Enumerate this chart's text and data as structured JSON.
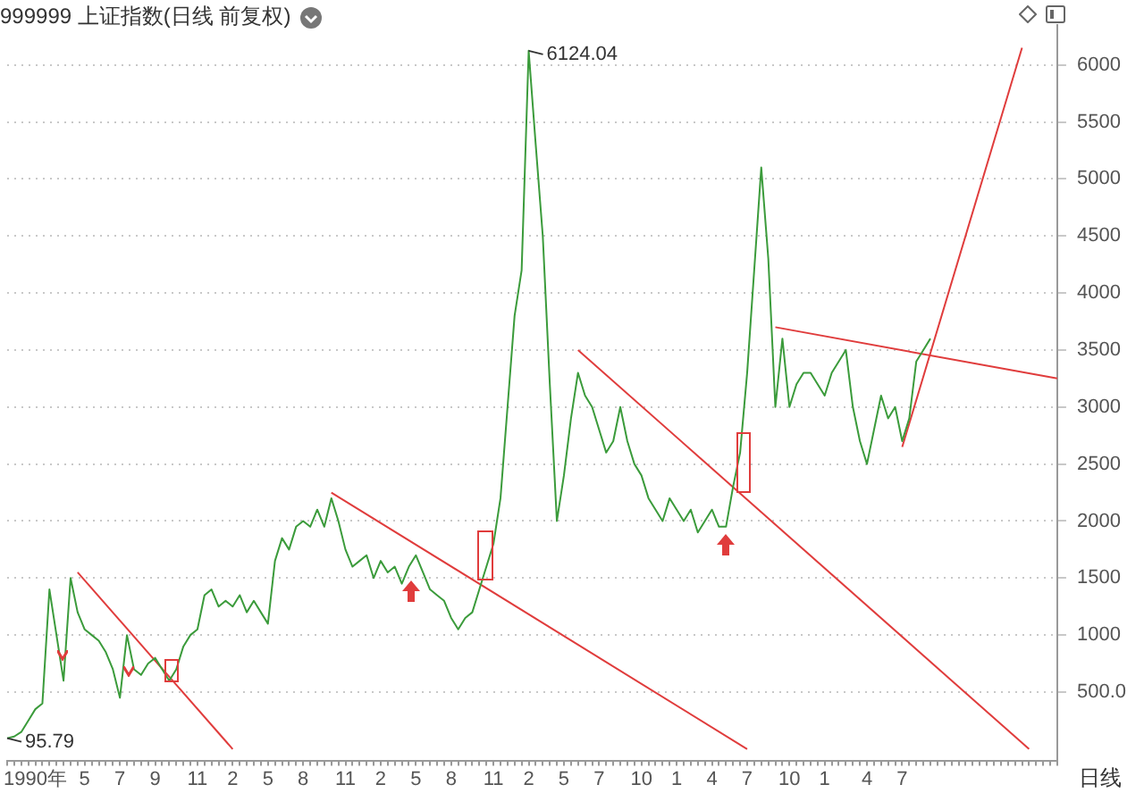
{
  "chart_data": {
    "type": "line",
    "title": "999999 上证指数(日线 前复权)",
    "categories": [
      null,
      null,
      null,
      null,
      "1990年",
      null,
      null,
      null,
      null,
      null,
      null,
      "5",
      null,
      null,
      null,
      null,
      "7",
      null,
      null,
      null,
      null,
      "9",
      null,
      null,
      null,
      null,
      null,
      "11",
      null,
      null,
      null,
      null,
      "2",
      null,
      null,
      null,
      null,
      "5",
      null,
      null,
      null,
      null,
      "8",
      null,
      null,
      null,
      null,
      null,
      "11",
      null,
      null,
      null,
      null,
      "2",
      null,
      null,
      null,
      null,
      "5",
      null,
      null,
      null,
      null,
      "8",
      null,
      null,
      null,
      null,
      null,
      "11",
      null,
      null,
      null,
      null,
      "2",
      null,
      null,
      null,
      null,
      "5",
      null,
      null,
      null,
      null,
      "7",
      null,
      null,
      null,
      null,
      null,
      "10",
      null,
      null,
      null,
      null,
      "1",
      null,
      null,
      null,
      null,
      "4",
      null,
      null,
      null,
      null,
      "7",
      null,
      null,
      null,
      null,
      null,
      "10",
      null,
      null,
      null,
      null,
      "1",
      null,
      null,
      null,
      null,
      null,
      "4",
      null,
      null,
      null,
      null,
      "7",
      null,
      null,
      null,
      null,
      null,
      null,
      null,
      null,
      null,
      null,
      null,
      null,
      null,
      null,
      null,
      null,
      null,
      null,
      null,
      null,
      null,
      null
    ],
    "series": [
      {
        "color": "#3b9b3b",
        "values": [
          95.79,
          110,
          150,
          250,
          350,
          400,
          1400,
          1000,
          600,
          1500,
          1200,
          1050,
          1000,
          950,
          850,
          700,
          450,
          1000,
          700,
          650,
          750,
          800,
          700,
          600,
          700,
          900,
          1000,
          1050,
          1350,
          1400,
          1250,
          1300,
          1250,
          1350,
          1200,
          1300,
          1200,
          1100,
          1650,
          1850,
          1750,
          1950,
          2000,
          1950,
          2100,
          1950,
          2200,
          2000,
          1750,
          1600,
          1650,
          1700,
          1500,
          1650,
          1550,
          1600,
          1450,
          1600,
          1700,
          1550,
          1400,
          1350,
          1300,
          1150,
          1050,
          1150,
          1200,
          1400,
          1600,
          1800,
          2200,
          3000,
          3800,
          4200,
          6124.04,
          5300,
          4500,
          3200,
          2000,
          2400,
          2900,
          3300,
          3100,
          3000,
          2800,
          2600,
          2700,
          3000,
          2700,
          2500,
          2400,
          2200,
          2100,
          2000,
          2200,
          2100,
          2000,
          2100,
          1900,
          2000,
          2100,
          1950,
          1950,
          2300,
          2600,
          3300,
          4200,
          5100,
          4300,
          3000,
          3600,
          3000,
          3200,
          3300,
          3300,
          3200,
          3100,
          3300,
          3400,
          3500,
          3000,
          2700,
          2500,
          2800,
          3100,
          2900,
          3000,
          2700,
          2900,
          3400,
          3500,
          3600,
          null,
          null,
          null,
          null,
          null,
          null,
          null,
          null,
          null,
          null,
          null,
          null,
          null,
          null,
          null,
          null,
          null,
          null
        ]
      },
      {
        "color": "#e03c3c",
        "values": [
          null,
          null,
          null,
          null,
          null,
          null,
          null,
          null,
          null,
          null,
          1550,
          null,
          null,
          null,
          null,
          null,
          null,
          null,
          null,
          null,
          null,
          null,
          null,
          null,
          null,
          null,
          null,
          null,
          null,
          null,
          null,
          null,
          0,
          null,
          null,
          null,
          null,
          null,
          null,
          null,
          null,
          null,
          null,
          null,
          null,
          null,
          null,
          null,
          null,
          null,
          null,
          null,
          null,
          null,
          null,
          null,
          null,
          null,
          null,
          null,
          null,
          null,
          null,
          null,
          null,
          null,
          null,
          null,
          null,
          null,
          null,
          null,
          null,
          null,
          null,
          null,
          null,
          null,
          null,
          null,
          null,
          null,
          null,
          null,
          null,
          null,
          null,
          null,
          null,
          null,
          null,
          null,
          null,
          null,
          null,
          null,
          null,
          null,
          null,
          null,
          null,
          null,
          null,
          null,
          null,
          null,
          null,
          null,
          null,
          null,
          null,
          null,
          null,
          null,
          null,
          null,
          null,
          null,
          null,
          null,
          null,
          null,
          null,
          null,
          null,
          null,
          null,
          null,
          null,
          null,
          null,
          null,
          null,
          null,
          null,
          null,
          null,
          null,
          null,
          null,
          null,
          null,
          null,
          null,
          null,
          null,
          null,
          null,
          null,
          null
        ]
      },
      {
        "color": "#e03c3c",
        "values": [
          null,
          null,
          null,
          null,
          null,
          null,
          null,
          null,
          null,
          null,
          null,
          null,
          null,
          null,
          null,
          null,
          null,
          null,
          null,
          null,
          null,
          null,
          null,
          null,
          null,
          null,
          null,
          null,
          null,
          null,
          null,
          null,
          null,
          null,
          null,
          null,
          null,
          null,
          null,
          null,
          null,
          null,
          null,
          null,
          null,
          null,
          2250,
          null,
          null,
          null,
          null,
          null,
          null,
          null,
          null,
          null,
          null,
          null,
          null,
          null,
          null,
          null,
          null,
          null,
          null,
          null,
          null,
          null,
          null,
          null,
          null,
          null,
          null,
          null,
          null,
          null,
          null,
          null,
          null,
          null,
          null,
          null,
          null,
          null,
          null,
          null,
          null,
          null,
          null,
          null,
          null,
          null,
          null,
          null,
          null,
          null,
          null,
          null,
          null,
          null,
          null,
          null,
          null,
          null,
          null,
          0,
          null,
          null,
          null,
          null,
          null,
          null,
          null,
          null,
          null,
          null,
          null,
          null,
          null,
          null,
          null,
          null,
          null,
          null,
          null,
          null,
          null,
          null,
          null,
          null,
          null,
          null,
          null,
          null,
          null,
          null,
          null,
          null,
          null,
          null,
          null,
          null,
          null,
          null,
          null,
          null,
          null,
          null,
          null,
          null
        ]
      },
      {
        "color": "#e03c3c",
        "values": [
          null,
          null,
          null,
          null,
          null,
          null,
          null,
          null,
          null,
          null,
          null,
          null,
          null,
          null,
          null,
          null,
          null,
          null,
          null,
          null,
          null,
          null,
          null,
          null,
          null,
          null,
          null,
          null,
          null,
          null,
          null,
          null,
          null,
          null,
          null,
          null,
          null,
          null,
          null,
          null,
          null,
          null,
          null,
          null,
          null,
          null,
          null,
          null,
          null,
          null,
          null,
          null,
          null,
          null,
          null,
          null,
          null,
          null,
          null,
          null,
          null,
          null,
          null,
          null,
          null,
          null,
          null,
          null,
          null,
          null,
          null,
          null,
          null,
          null,
          null,
          null,
          null,
          null,
          null,
          null,
          null,
          3500,
          null,
          null,
          null,
          null,
          null,
          null,
          null,
          null,
          null,
          null,
          null,
          null,
          null,
          null,
          null,
          null,
          null,
          null,
          null,
          null,
          null,
          null,
          null,
          null,
          null,
          null,
          null,
          null,
          null,
          null,
          null,
          null,
          null,
          null,
          null,
          null,
          null,
          null,
          null,
          null,
          null,
          null,
          null,
          null,
          null,
          null,
          null,
          null,
          null,
          null,
          null,
          null,
          null,
          null,
          null,
          null,
          null,
          null,
          null,
          null,
          null,
          null,
          null,
          0,
          null,
          null,
          null,
          null
        ]
      },
      {
        "color": "#e03c3c",
        "values": [
          null,
          null,
          null,
          null,
          null,
          null,
          null,
          null,
          null,
          null,
          null,
          null,
          null,
          null,
          null,
          null,
          null,
          null,
          null,
          null,
          null,
          null,
          null,
          null,
          null,
          null,
          null,
          null,
          null,
          null,
          null,
          null,
          null,
          null,
          null,
          null,
          null,
          null,
          null,
          null,
          null,
          null,
          null,
          null,
          null,
          null,
          null,
          null,
          null,
          null,
          null,
          null,
          null,
          null,
          null,
          null,
          null,
          null,
          null,
          null,
          null,
          null,
          null,
          null,
          null,
          null,
          null,
          null,
          null,
          null,
          null,
          null,
          null,
          null,
          null,
          null,
          null,
          null,
          null,
          null,
          null,
          null,
          null,
          null,
          null,
          null,
          null,
          null,
          null,
          null,
          null,
          null,
          null,
          null,
          null,
          null,
          null,
          null,
          null,
          null,
          null,
          null,
          null,
          null,
          null,
          null,
          null,
          null,
          null,
          3700,
          null,
          null,
          null,
          null,
          null,
          null,
          null,
          null,
          null,
          null,
          null,
          null,
          null,
          null,
          null,
          null,
          null,
          null,
          null,
          null,
          null,
          null,
          null,
          null,
          null,
          null,
          null,
          null,
          null,
          null,
          null,
          null,
          null,
          null,
          null,
          null,
          null,
          null,
          null,
          3250
        ]
      },
      {
        "color": "#e03c3c",
        "values": [
          null,
          null,
          null,
          null,
          null,
          null,
          null,
          null,
          null,
          null,
          null,
          null,
          null,
          null,
          null,
          null,
          null,
          null,
          null,
          null,
          null,
          null,
          null,
          null,
          null,
          null,
          null,
          null,
          null,
          null,
          null,
          null,
          null,
          null,
          null,
          null,
          null,
          null,
          null,
          null,
          null,
          null,
          null,
          null,
          null,
          null,
          null,
          null,
          null,
          null,
          null,
          null,
          null,
          null,
          null,
          null,
          null,
          null,
          null,
          null,
          null,
          null,
          null,
          null,
          null,
          null,
          null,
          null,
          null,
          null,
          null,
          null,
          null,
          null,
          null,
          null,
          null,
          null,
          null,
          null,
          null,
          null,
          null,
          null,
          null,
          null,
          null,
          null,
          null,
          null,
          null,
          null,
          null,
          null,
          null,
          null,
          null,
          null,
          null,
          null,
          null,
          null,
          null,
          null,
          null,
          null,
          null,
          null,
          null,
          null,
          null,
          null,
          null,
          null,
          null,
          null,
          null,
          null,
          null,
          null,
          null,
          null,
          null,
          null,
          null,
          null,
          null,
          2650,
          null,
          null,
          null,
          null,
          null,
          null,
          null,
          null,
          null,
          null,
          null,
          null,
          null,
          null,
          null,
          null,
          6150,
          null,
          null,
          null,
          null,
          null
        ]
      }
    ],
    "ylim": [
      -100,
      6350
    ],
    "yticks": [
      {
        "value": 500,
        "label": "500.0"
      },
      1000,
      1500,
      2000,
      2500,
      3000,
      3500,
      4000,
      4500,
      5000,
      5500,
      6000
    ],
    "grid": "y",
    "legend": false,
    "annotations": [
      "6124.04",
      "95.79",
      "日线"
    ]
  }
}
